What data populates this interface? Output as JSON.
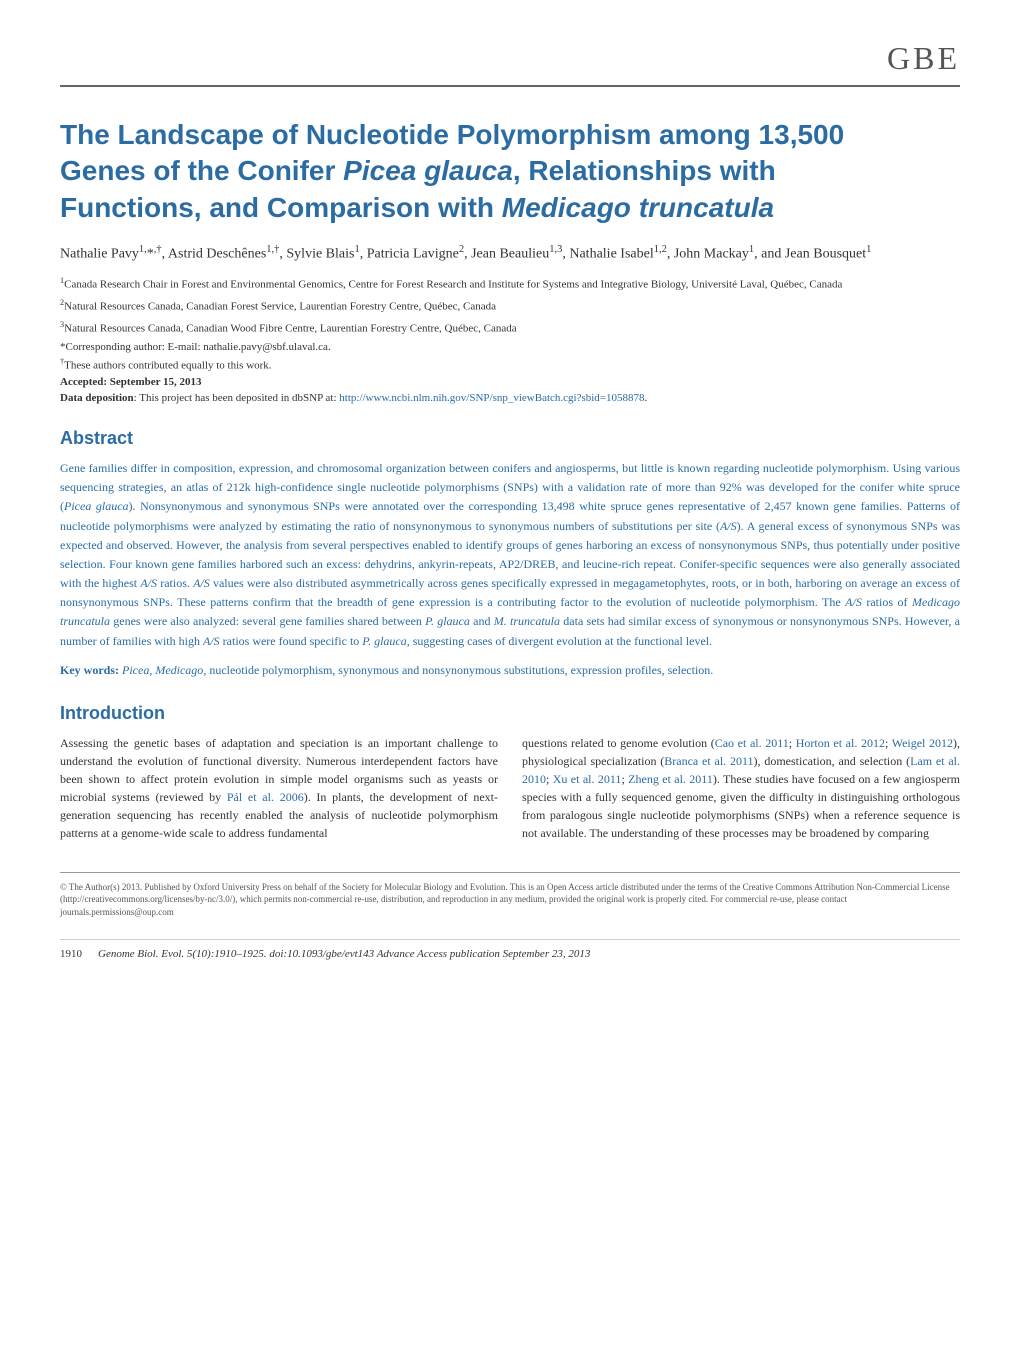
{
  "journal": "GBE",
  "title_line1": "The Landscape of Nucleotide Polymorphism among 13,500",
  "title_line2_pre": "Genes of the Conifer ",
  "title_line2_italic": "Picea glauca",
  "title_line2_post": ", Relationships with",
  "title_line3_pre": "Functions, and Comparison with ",
  "title_line3_italic": "Medicago truncatula",
  "authors_html": "Nathalie Pavy<sup>1,</sup>*<sup>,†</sup>, Astrid Deschênes<sup>1,†</sup>, Sylvie Blais<sup>1</sup>, Patricia Lavigne<sup>2</sup>, Jean Beaulieu<sup>1,3</sup>, Nathalie Isabel<sup>1,2</sup>, John Mackay<sup>1</sup>, and Jean Bousquet<sup>1</sup>",
  "affil1": "<sup>1</sup>Canada Research Chair in Forest and Environmental Genomics, Centre for Forest Research and Institute for Systems and Integrative Biology, Université Laval, Québec, Canada",
  "affil2": "<sup>2</sup>Natural Resources Canada, Canadian Forest Service, Laurentian Forestry Centre, Québec, Canada",
  "affil3": "<sup>3</sup>Natural Resources Canada, Canadian Wood Fibre Centre, Laurentian Forestry Centre, Québec, Canada",
  "corresponding": "*Corresponding author: E-mail: nathalie.pavy@sbf.ulaval.ca.",
  "equal_contrib": "<sup>†</sup>These authors contributed equally to this work.",
  "accepted": "Accepted: September 15, 2013",
  "data_deposition_pre": "Data deposition: This project has been deposited in dbSNP at: ",
  "data_deposition_link": "http://www.ncbi.nlm.nih.gov/SNP/snp_viewBatch.cgi?sbid=1058878",
  "data_deposition_post": ".",
  "abstract_heading": "Abstract",
  "abstract_body": "Gene families differ in composition, expression, and chromosomal organization between conifers and angiosperms, but little is known regarding nucleotide polymorphism. Using various sequencing strategies, an atlas of 212k high-confidence single nucleotide polymorphisms (SNPs) with a validation rate of more than 92% was developed for the conifer white spruce (<span class=\"italic\">Picea glauca</span>). Nonsynonymous and synonymous SNPs were annotated over the corresponding 13,498 white spruce genes representative of 2,457 known gene families. Patterns of nucleotide polymorphisms were analyzed by estimating the ratio of nonsynonymous to synonymous numbers of substitutions per site (<span class=\"italic\">A/S</span>). A general excess of synonymous SNPs was expected and observed. However, the analysis from several perspectives enabled to identify groups of genes harboring an excess of nonsynonymous SNPs, thus potentially under positive selection. Four known gene families harbored such an excess: dehydrins, ankyrin-repeats, AP2/DREB, and leucine-rich repeat. Conifer-specific sequences were also generally associated with the highest <span class=\"italic\">A/S</span> ratios. <span class=\"italic\">A/S</span> values were also distributed asymmetrically across genes specifically expressed in megagametophytes, roots, or in both, harboring on average an excess of nonsynonymous SNPs. These patterns confirm that the breadth of gene expression is a contributing factor to the evolution of nucleotide polymorphism. The <span class=\"italic\">A/S</span> ratios of <span class=\"italic\">Medicago truncatula</span> genes were also analyzed: several gene families shared between <span class=\"italic\">P. glauca</span> and <span class=\"italic\">M. truncatula</span> data sets had similar excess of synonymous or nonsynonymous SNPs. However, a number of families with high <span class=\"italic\">A/S</span> ratios were found specific to <span class=\"italic\">P. glauca</span>, suggesting cases of divergent evolution at the functional level.",
  "keywords_label": "Key words:",
  "keywords_body": " <span class=\"italic\">Picea</span>, <span class=\"italic\">Medicago</span>, nucleotide polymorphism, synonymous and nonsynonymous substitutions, expression profiles, selection.",
  "intro_heading": "Introduction",
  "intro_col1": "Assessing the genetic bases of adaptation and speciation is an important challenge to understand the evolution of functional diversity. Numerous interdependent factors have been shown to affect protein evolution in simple model organisms such as yeasts or microbial systems (reviewed by <span class=\"link\">Pál et al. 2006</span>). In plants, the development of next-generation sequencing has recently enabled the analysis of nucleotide polymorphism patterns at a genome-wide scale to address fundamental",
  "intro_col2": "questions related to genome evolution (<span class=\"link\">Cao et al. 2011</span>; <span class=\"link\">Horton et al. 2012</span>; <span class=\"link\">Weigel 2012</span>), physiological specialization (<span class=\"link\">Branca et al. 2011</span>), domestication, and selection (<span class=\"link\">Lam et al. 2010</span>; <span class=\"link\">Xu et al. 2011</span>; <span class=\"link\">Zheng et al. 2011</span>). These studies have focused on a few angiosperm species with a fully sequenced genome, given the difficulty in distinguishing orthologous from paralogous single nucleotide polymorphisms (SNPs) when a reference sequence is not available. The understanding of these processes may be broadened by comparing",
  "copyright": "© The Author(s) 2013. Published by Oxford University Press on behalf of the Society for Molecular Biology and Evolution. This is an Open Access article distributed under the terms of the Creative Commons Attribution Non-Commercial License (http://creativecommons.org/licenses/by-nc/3.0/), which permits non-commercial re-use, distribution, and reproduction in any medium, provided the original work is properly cited. For commercial re-use, please contact journals.permissions@oup.com",
  "page_number": "1910",
  "citation": "Genome Biol. Evol. 5(10):1910–1925.  doi:10.1093/gbe/evt143  Advance Access publication September 23, 2013",
  "colors": {
    "accent": "#2b6ca3",
    "text": "#333333",
    "footer_text": "#555555",
    "rule": "#666666"
  }
}
